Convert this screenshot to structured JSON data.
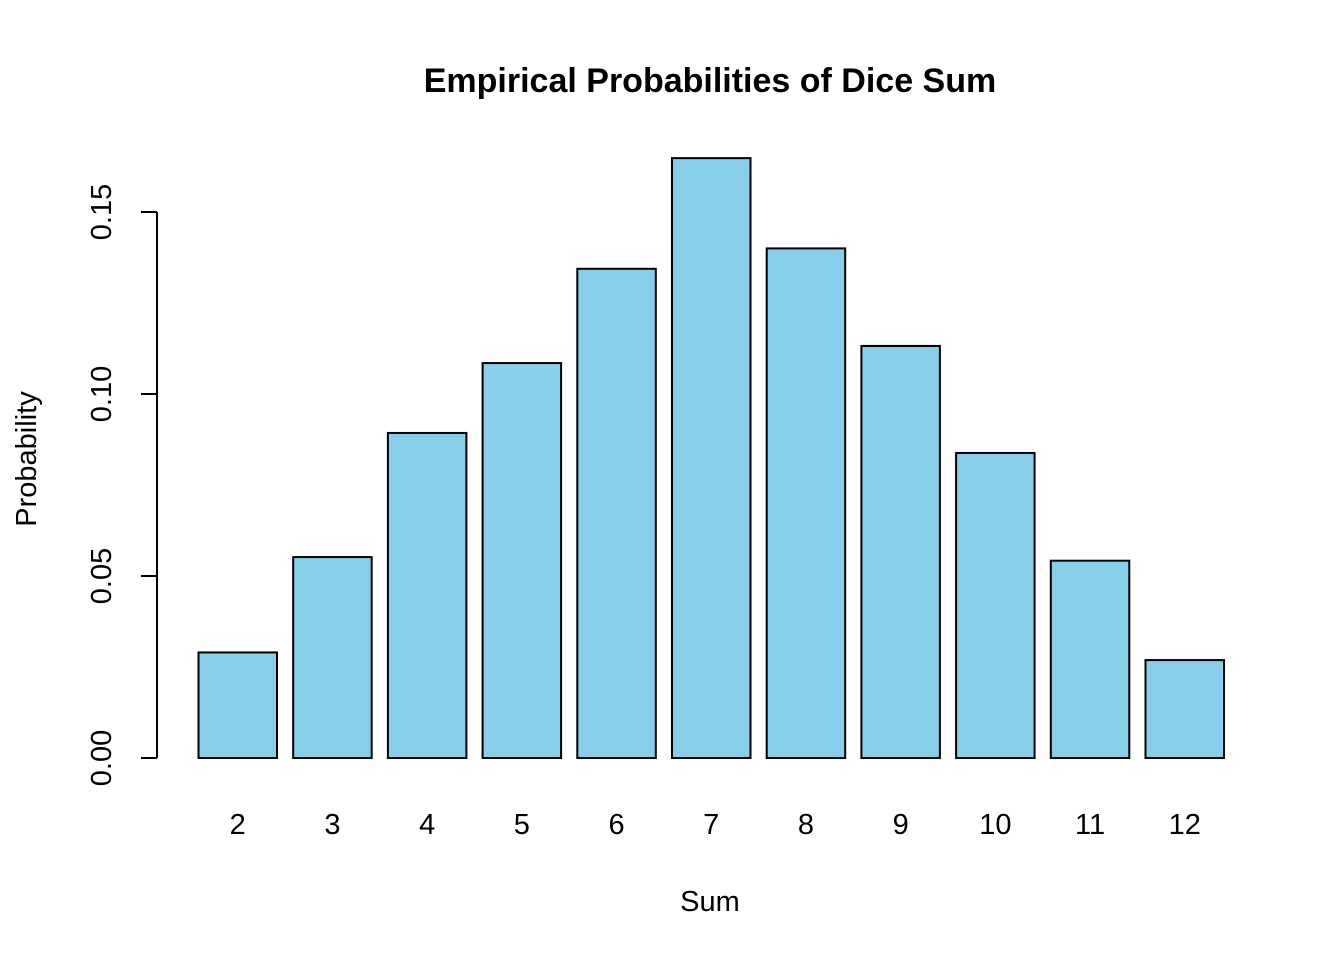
{
  "chart_data": {
    "type": "bar",
    "title": "Empirical Probabilities of Dice Sum",
    "xlabel": "Sum",
    "ylabel": "Probability",
    "categories": [
      "2",
      "3",
      "4",
      "5",
      "6",
      "7",
      "8",
      "9",
      "10",
      "11",
      "12"
    ],
    "values": [
      0.029,
      0.0552,
      0.0893,
      0.1085,
      0.1344,
      0.1648,
      0.14,
      0.1132,
      0.0838,
      0.0542,
      0.0269
    ],
    "ylim": [
      0,
      0.15
    ],
    "yticks": [
      "0.00",
      "0.05",
      "0.10",
      "0.15"
    ],
    "ytick_values": [
      0,
      0.05,
      0.1,
      0.15
    ],
    "bar_color": "#87CEEB",
    "border_color": "#000000",
    "grid": false,
    "legend": "none"
  }
}
